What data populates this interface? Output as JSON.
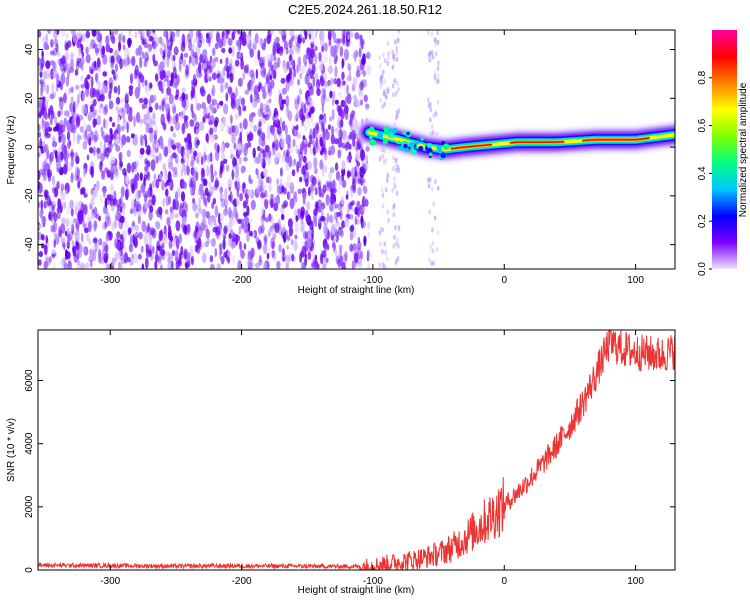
{
  "title": "C2E5.2024.261.18.50.R12",
  "chart_data": [
    {
      "type": "heatmap",
      "xlabel": "Height of straight line (km)",
      "ylabel": "Frequency (Hz)",
      "xlim": [
        -355,
        130
      ],
      "ylim": [
        -50,
        48
      ],
      "x_ticks": [
        -300,
        -200,
        -100,
        0,
        100
      ],
      "y_ticks": [
        -40,
        -20,
        0,
        20,
        40
      ],
      "ridge": {
        "description_points": [
          {
            "x": -103,
            "y": 6
          },
          {
            "x": -80,
            "y": 3
          },
          {
            "x": -60,
            "y": 0
          },
          {
            "x": -45,
            "y": -1
          },
          {
            "x": -30,
            "y": 0
          },
          {
            "x": -10,
            "y": 1
          },
          {
            "x": 10,
            "y": 2
          },
          {
            "x": 40,
            "y": 2
          },
          {
            "x": 70,
            "y": 3
          },
          {
            "x": 100,
            "y": 3
          },
          {
            "x": 130,
            "y": 5
          }
        ]
      },
      "noise_region": {
        "x_start": -355,
        "x_end": -103
      },
      "colorbar": {
        "label": "Normalized spectral amplitude",
        "range": [
          0,
          1
        ],
        "ticks": [
          "0.0",
          "0.2",
          "0.4",
          "0.6",
          "0.8"
        ],
        "colors": [
          "#f0e0ff",
          "#7a00ff",
          "#0000ff",
          "#00c8ff",
          "#00ff80",
          "#80ff00",
          "#ffff00",
          "#ff8000",
          "#ff0000",
          "#ff00a0"
        ]
      }
    },
    {
      "type": "line",
      "xlabel": "Height of straight line (km)",
      "ylabel": "SNR (10 * v/v)",
      "xlim": [
        -355,
        130
      ],
      "ylim": [
        0,
        7600
      ],
      "x_ticks": [
        -300,
        -200,
        -100,
        0,
        100
      ],
      "y_ticks": [
        0,
        2000,
        4000,
        6000
      ],
      "color": "#ee3333",
      "x": [
        -355,
        -300,
        -250,
        -200,
        -150,
        -110,
        -100,
        -90,
        -80,
        -70,
        -60,
        -50,
        -40,
        -30,
        -20,
        -10,
        0,
        10,
        20,
        30,
        40,
        50,
        60,
        70,
        80,
        90,
        100,
        110,
        120,
        130
      ],
      "y": [
        150,
        140,
        120,
        130,
        120,
        110,
        140,
        200,
        260,
        320,
        400,
        520,
        700,
        1000,
        1350,
        1700,
        2050,
        2450,
        2900,
        3400,
        3950,
        4550,
        5300,
        6200,
        7200,
        7000,
        6900,
        6850,
        6800,
        6950
      ]
    }
  ]
}
